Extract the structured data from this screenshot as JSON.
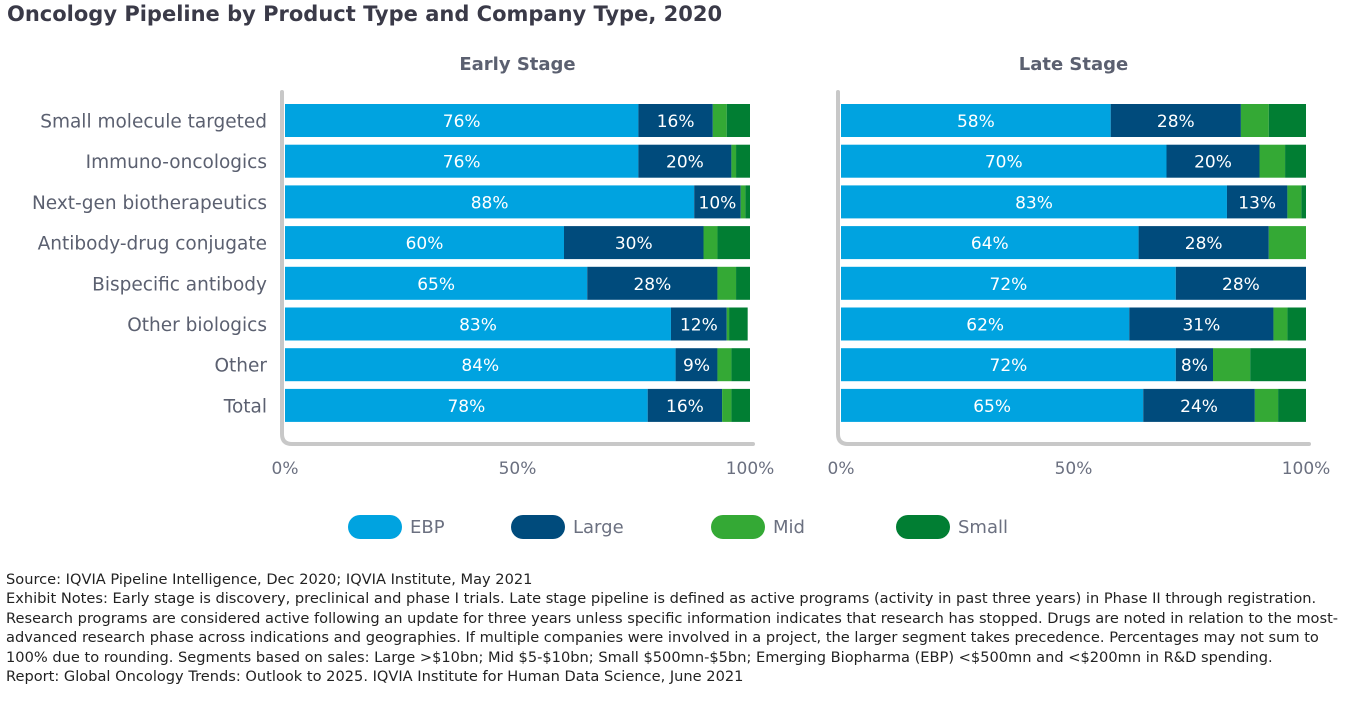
{
  "title": "Oncology Pipeline by Product Type and Company Type, 2020",
  "colors": {
    "EBP": "#00A3E0",
    "Large": "#004B7C",
    "Mid": "#34A935",
    "Small": "#017E33",
    "axis": "#c8c8c8",
    "text": "#5b6070"
  },
  "legend": [
    "EBP",
    "Large",
    "Mid",
    "Small"
  ],
  "chart_data": [
    {
      "type": "bar",
      "orientation": "horizontal",
      "stacked": true,
      "title": "Early Stage",
      "categories": [
        "Small molecule targeted",
        "Immuno-oncologics",
        "Next-gen biotherapeutics",
        "Antibody-drug conjugate",
        "Bispecific antibody",
        "Other biologics",
        "Other",
        "Total"
      ],
      "series": [
        {
          "name": "EBP",
          "values": [
            76,
            76,
            88,
            60,
            65,
            83,
            84,
            78
          ]
        },
        {
          "name": "Large",
          "values": [
            16,
            20,
            10,
            30,
            28,
            12,
            9,
            16
          ]
        },
        {
          "name": "Mid",
          "values": [
            3,
            1,
            1,
            3,
            4,
            0.5,
            3,
            2
          ]
        },
        {
          "name": "Small",
          "values": [
            5,
            3,
            1,
            7,
            3,
            4,
            4,
            4
          ]
        }
      ],
      "labels": {
        "EBP": [
          "76%",
          "76%",
          "88%",
          "60%",
          "65%",
          "83%",
          "84%",
          "78%"
        ],
        "Large": [
          "16%",
          "20%",
          "10%",
          "30%",
          "28%",
          "12%",
          "9%",
          "16%"
        ]
      },
      "xlim": [
        0,
        100
      ],
      "xticks": [
        "0%",
        "50%",
        "100%"
      ]
    },
    {
      "type": "bar",
      "orientation": "horizontal",
      "stacked": true,
      "title": "Late Stage",
      "categories": [
        "Small molecule targeted",
        "Immuno-oncologics",
        "Next-gen biotherapeutics",
        "Antibody-drug conjugate",
        "Bispecific antibody",
        "Other biologics",
        "Other",
        "Total"
      ],
      "series": [
        {
          "name": "EBP",
          "values": [
            58,
            70,
            83,
            64,
            72,
            62,
            72,
            65
          ]
        },
        {
          "name": "Large",
          "values": [
            28,
            20,
            13,
            28,
            28,
            31,
            8,
            24
          ]
        },
        {
          "name": "Mid",
          "values": [
            6,
            5.5,
            3,
            9,
            0,
            3,
            8,
            5
          ]
        },
        {
          "name": "Small",
          "values": [
            8,
            4.5,
            1,
            0,
            0,
            4,
            12,
            6
          ]
        }
      ],
      "labels": {
        "EBP": [
          "58%",
          "70%",
          "83%",
          "64%",
          "72%",
          "62%",
          "72%",
          "65%"
        ],
        "Large": [
          "28%",
          "20%",
          "13%",
          "28%",
          "28%",
          "31%",
          "8%",
          "24%"
        ]
      },
      "xlim": [
        0,
        100
      ],
      "xticks": [
        "0%",
        "50%",
        "100%"
      ]
    }
  ],
  "notes": {
    "source": "Source: IQVIA Pipeline Intelligence, Dec 2020; IQVIA Institute, May 2021",
    "exhibit": "Exhibit Notes: Early stage is discovery, preclinical and phase I trials. Late stage pipeline is defined as active programs (activity in past three years) in Phase II through registration. Research programs are considered active following an update for three years unless specific information indicates that research has stopped. Drugs are noted in relation to the most-advanced research phase across indications and geographies. If multiple companies were involved in a project, the larger segment takes precedence. Percentages may not sum to 100% due to rounding. Segments based on sales: Large >$10bn; Mid $5-$10bn; Small $500mn-$5bn; Emerging Biopharma (EBP) <$500mn and <$200mn in R&D spending.",
    "report": "Report: Global Oncology Trends: Outlook to 2025. IQVIA Institute for Human Data Science, June 2021"
  }
}
